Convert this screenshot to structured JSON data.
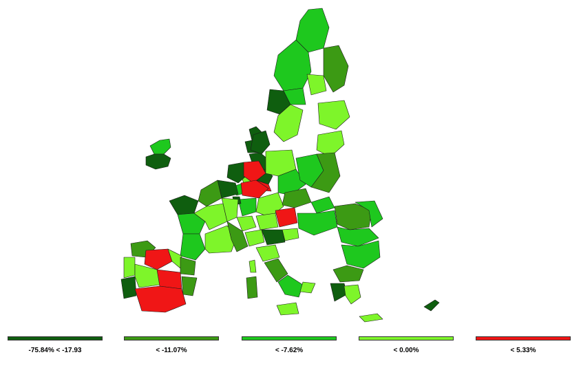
{
  "legend": [
    {
      "label": "-75.84% < -17.93",
      "color": "#0f5e0f"
    },
    {
      "label": "< -11.07%",
      "color": "#3c9a14"
    },
    {
      "label": "< -7.62%",
      "color": "#1ec81e"
    },
    {
      "label": "< 0.00%",
      "color": "#7ef52a"
    },
    {
      "label": "< 5.33%",
      "color": "#f01616"
    }
  ],
  "map": {
    "subject": "EU NUTS-2 regions choropleth",
    "class_colors": [
      "#0f5e0f",
      "#3c9a14",
      "#1ec81e",
      "#7ef52a",
      "#f01616"
    ],
    "stroke_color": "#1a1a1a"
  }
}
